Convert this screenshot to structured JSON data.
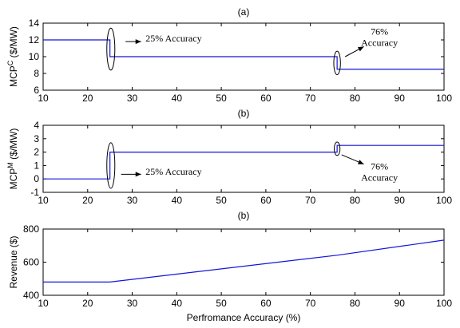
{
  "colors": {
    "line": "#1414d8",
    "axes": "#000000"
  },
  "chart_data": [
    {
      "type": "line",
      "title": "(a)",
      "ylabel": {
        "base": "MCP",
        "sup": "C",
        "rest": " ($/MW)"
      },
      "xlabel": "",
      "xlim": [
        10,
        100
      ],
      "ylim": [
        6,
        14
      ],
      "xticks": [
        10,
        20,
        30,
        40,
        50,
        60,
        70,
        80,
        90,
        100
      ],
      "yticks": [
        6,
        8,
        10,
        12,
        14
      ],
      "grid": false,
      "series": [
        {
          "x": [
            10,
            25,
            25,
            76,
            76,
            100
          ],
          "y": [
            12,
            12,
            10,
            10,
            8.5,
            8.5
          ]
        }
      ],
      "annotations": [
        {
          "lines": [
            "25% Accuracy"
          ],
          "ellipse": {
            "cx": 25.2,
            "cy": 10.9,
            "rx": 0.9,
            "ry": 2.5
          },
          "arrow": {
            "from": [
              28.5,
              11.8
            ],
            "to": [
              32,
              11.8
            ]
          },
          "text_at": [
            33,
            11.8
          ],
          "anchor": "start"
        },
        {
          "lines": [
            "76%",
            "Accuracy"
          ],
          "ellipse": {
            "cx": 76,
            "cy": 9.25,
            "rx": 0.75,
            "ry": 1.4
          },
          "arrow": {
            "from": [
              77.8,
              10
            ],
            "to": [
              82,
              11.2
            ]
          },
          "text_at": [
            85.5,
            12.6
          ],
          "anchor": "middle"
        }
      ]
    },
    {
      "type": "line",
      "title": "(b)",
      "ylabel": {
        "base": "MCP",
        "sup": "M",
        "rest": " ($/MW)"
      },
      "xlabel": "",
      "xlim": [
        10,
        100
      ],
      "ylim": [
        -1,
        4
      ],
      "xticks": [
        10,
        20,
        30,
        40,
        50,
        60,
        70,
        80,
        90,
        100
      ],
      "yticks": [
        -1,
        0,
        1,
        2,
        3,
        4
      ],
      "grid": false,
      "series": [
        {
          "x": [
            10,
            25,
            25,
            76,
            76,
            100
          ],
          "y": [
            0,
            0,
            2,
            2,
            2.5,
            2.5
          ]
        }
      ],
      "annotations": [
        {
          "lines": [
            "25% Accuracy"
          ],
          "ellipse": {
            "cx": 25.2,
            "cy": 1.0,
            "rx": 0.9,
            "ry": 1.7
          },
          "arrow": {
            "from": [
              27.5,
              0.35
            ],
            "to": [
              32,
              0.35
            ]
          },
          "text_at": [
            33,
            0.3
          ],
          "anchor": "start"
        },
        {
          "lines": [
            "76%",
            "Accuracy"
          ],
          "ellipse": {
            "cx": 76,
            "cy": 2.25,
            "rx": 0.65,
            "ry": 0.5
          },
          "arrow": {
            "from": [
              77,
              1.8
            ],
            "to": [
              82,
              1.1
            ]
          },
          "text_at": [
            85.5,
            0.7
          ],
          "anchor": "middle"
        }
      ]
    },
    {
      "type": "line",
      "title": "(b)",
      "ylabel": {
        "base": "Revenue ($)",
        "sup": "",
        "rest": ""
      },
      "xlabel": "Perfromance Accuracy (%)",
      "xlim": [
        10,
        100
      ],
      "ylim": [
        400,
        800
      ],
      "xticks": [
        10,
        20,
        30,
        40,
        50,
        60,
        70,
        80,
        90,
        100
      ],
      "yticks": [
        400,
        600,
        800
      ],
      "grid": false,
      "series": [
        {
          "x": [
            10,
            25,
            76,
            100
          ],
          "y": [
            480,
            480,
            642,
            733
          ]
        }
      ],
      "annotations": []
    }
  ]
}
